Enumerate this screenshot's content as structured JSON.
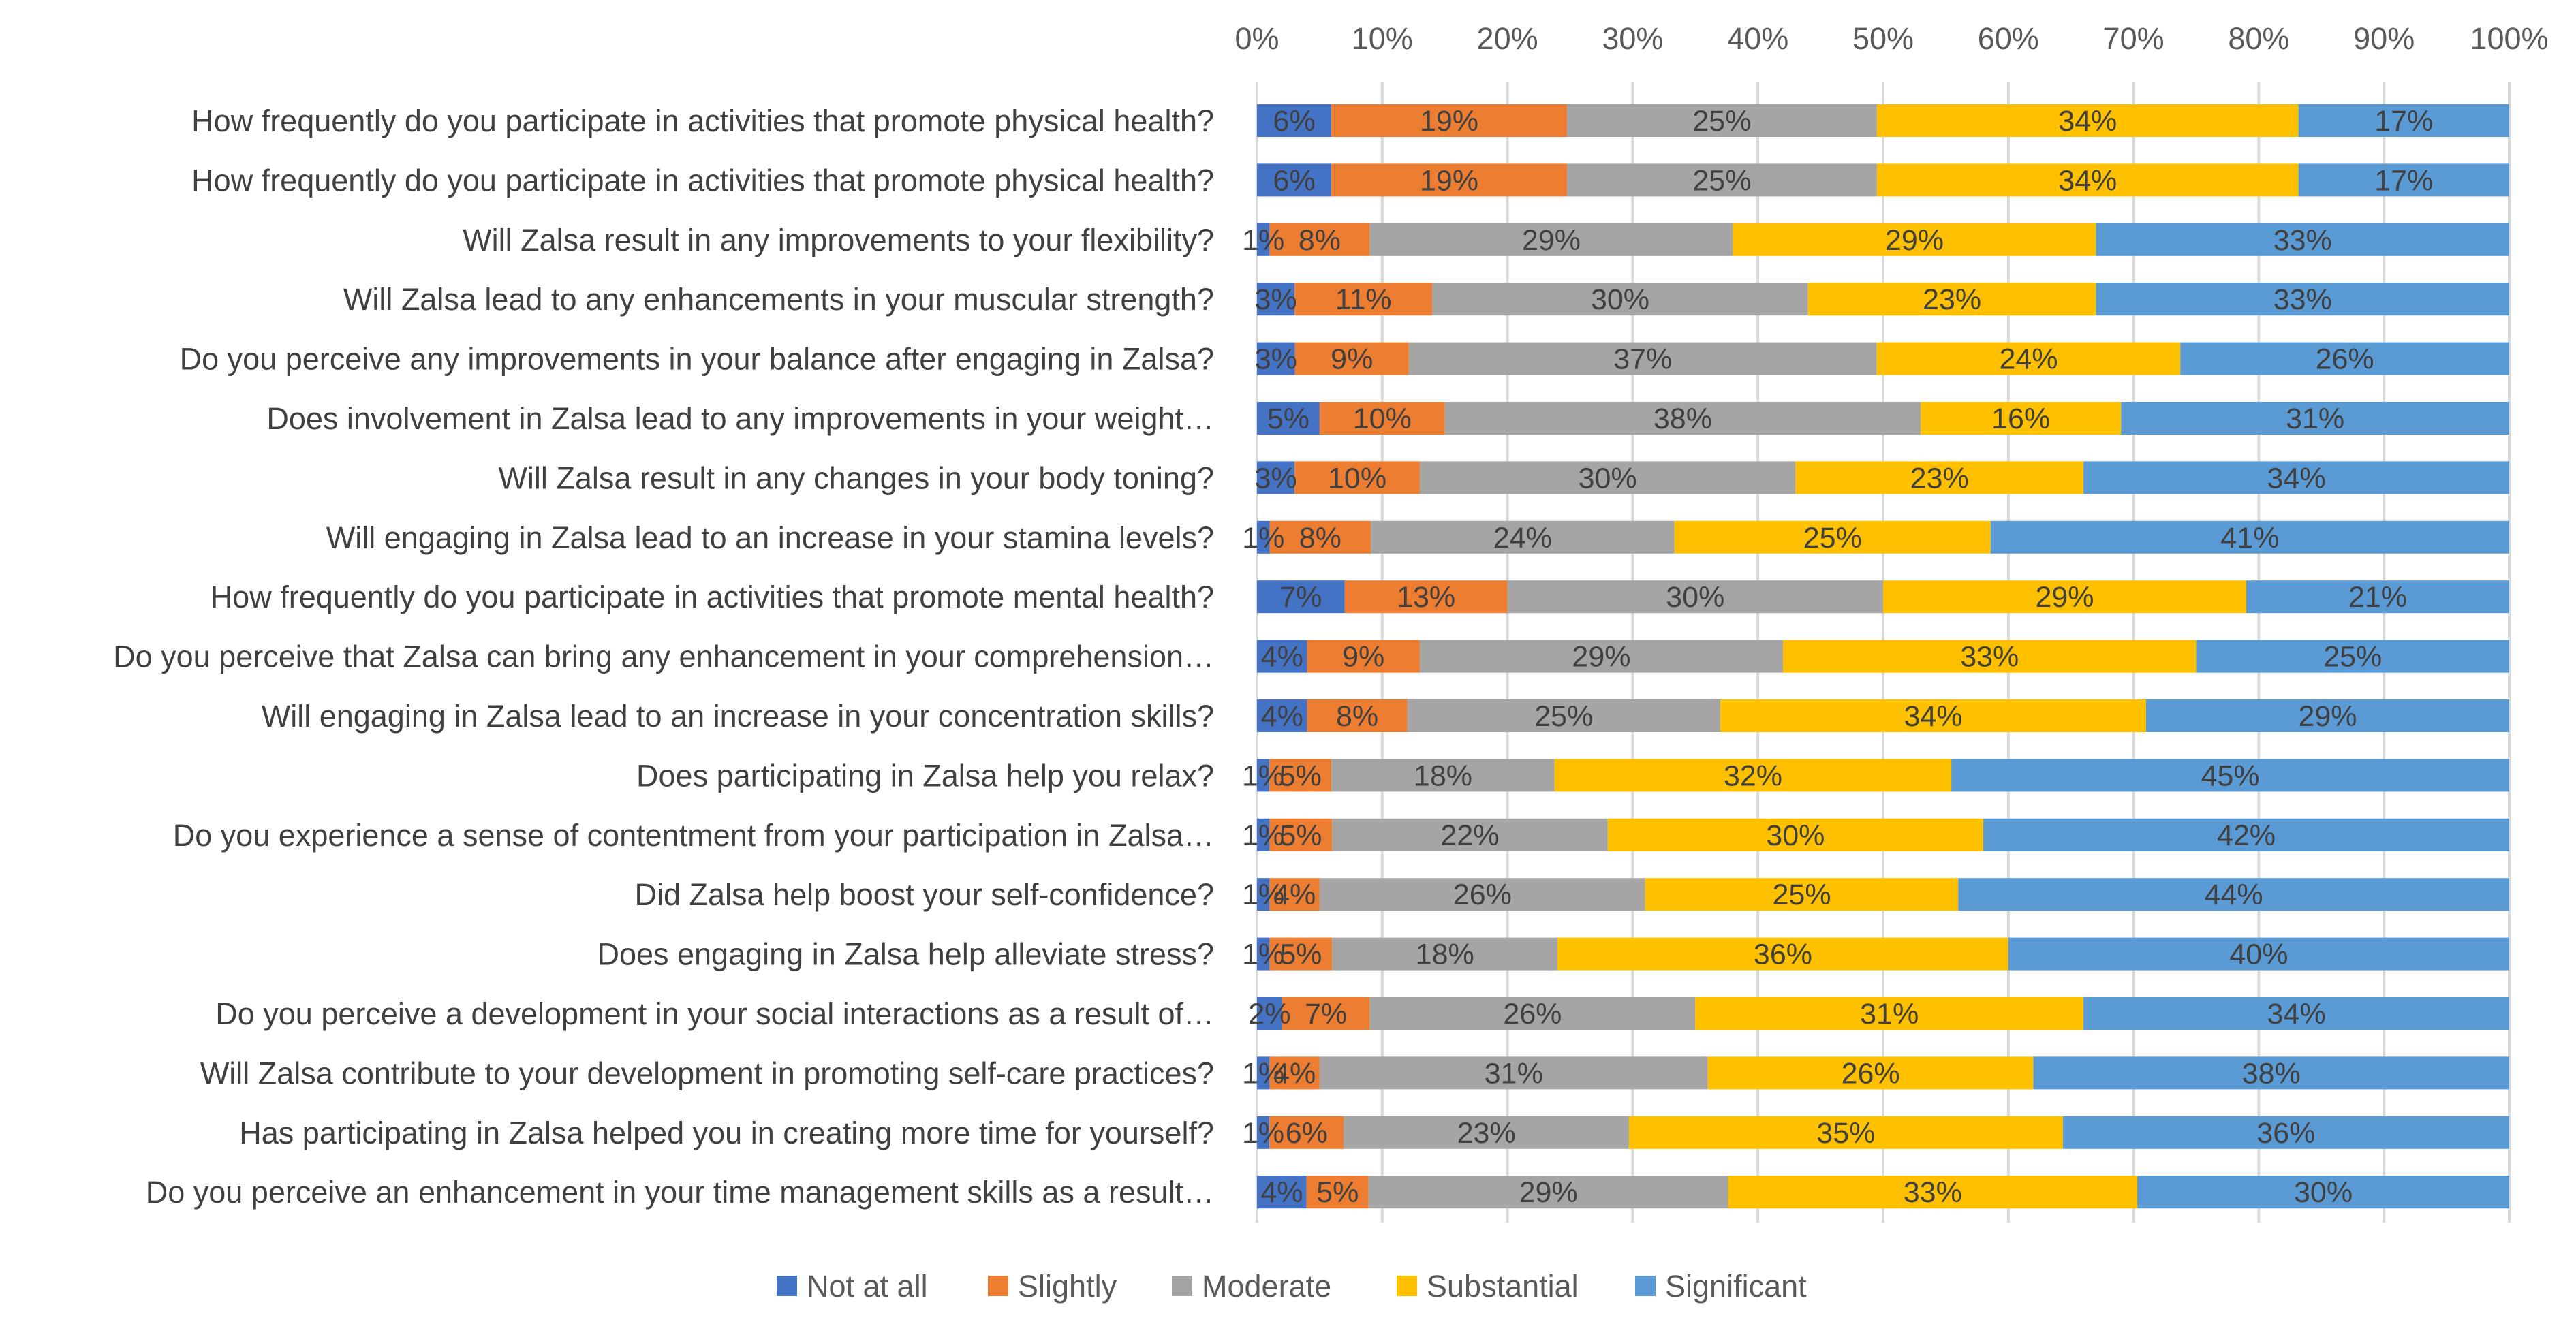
{
  "chart_data": {
    "type": "bar",
    "orientation": "horizontal",
    "stacked": "100%",
    "title": "",
    "xlabel": "",
    "ylabel": "",
    "xlim": [
      0,
      100
    ],
    "x_ticks": [
      "0%",
      "10%",
      "20%",
      "30%",
      "40%",
      "50%",
      "60%",
      "70%",
      "80%",
      "90%",
      "100%"
    ],
    "x_axis_position": "top",
    "grid": true,
    "legend_position": "bottom",
    "categories": [
      "How frequently do you participate in activities that promote physical health?",
      "How frequently do you participate in activities that promote physical health?",
      "Will Zalsa result in any improvements to your flexibility?",
      "Will Zalsa lead to any enhancements in your muscular strength?",
      "Do you perceive any improvements in your balance after engaging in Zalsa?",
      "Does involvement in Zalsa lead to any improvements in your weight…",
      "Will Zalsa result in any changes in your body toning?",
      "Will engaging in Zalsa lead to an increase in your stamina levels?",
      "How frequently do you participate in activities that promote mental health?",
      "Do you perceive that Zalsa can bring any enhancement in your comprehension…",
      "Will engaging in Zalsa lead to an increase in your concentration skills?",
      "Does participating in Zalsa help you relax?",
      "Do you experience a sense of contentment from your participation in Zalsa…",
      "Did Zalsa help boost your self-confidence?",
      "Does engaging in Zalsa help alleviate stress?",
      "Do you perceive a development in your social interactions as a result of…",
      "Will Zalsa contribute to your development in promoting self-care practices?",
      "Has participating in Zalsa helped you in creating more time for yourself?",
      "Do you perceive an enhancement in your time management skills as a result…"
    ],
    "series": [
      {
        "name": "Not at all",
        "color": "#4472C4",
        "values": [
          6,
          6,
          1,
          3,
          3,
          5,
          3,
          1,
          7,
          4,
          4,
          1,
          1,
          1,
          1,
          2,
          1,
          1,
          4
        ]
      },
      {
        "name": "Slightly",
        "color": "#ED7D31",
        "values": [
          19,
          19,
          8,
          11,
          9,
          10,
          10,
          8,
          13,
          9,
          8,
          5,
          5,
          4,
          5,
          7,
          4,
          6,
          5
        ]
      },
      {
        "name": "Moderate",
        "color": "#A5A5A5",
        "values": [
          25,
          25,
          29,
          30,
          37,
          38,
          30,
          24,
          30,
          29,
          25,
          18,
          22,
          26,
          18,
          26,
          31,
          23,
          29
        ]
      },
      {
        "name": "Substantial",
        "color": "#FFC000",
        "values": [
          34,
          34,
          29,
          23,
          24,
          16,
          23,
          25,
          29,
          33,
          34,
          32,
          30,
          25,
          36,
          31,
          26,
          35,
          33
        ]
      },
      {
        "name": "Significant",
        "color": "#5B9BD5",
        "values": [
          17,
          17,
          33,
          33,
          26,
          31,
          34,
          41,
          21,
          25,
          29,
          45,
          42,
          44,
          40,
          34,
          38,
          36,
          30
        ]
      }
    ],
    "data_label_format": "percent"
  }
}
